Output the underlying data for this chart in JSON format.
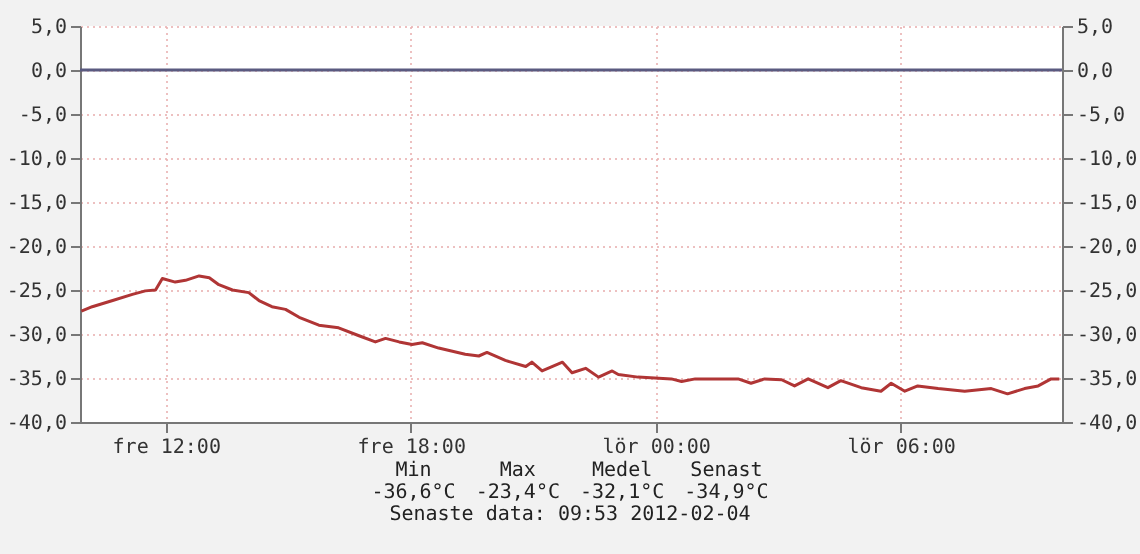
{
  "chart_data": {
    "type": "line",
    "x": [
      "2012-02-03T09:56",
      "2012-02-03T10:12",
      "2012-02-03T10:42",
      "2012-02-03T11:11",
      "2012-02-03T11:30",
      "2012-02-03T11:45",
      "2012-02-03T11:55",
      "2012-02-03T12:14",
      "2012-02-03T12:29",
      "2012-02-03T12:49",
      "2012-02-03T13:04",
      "2012-02-03T13:18",
      "2012-02-03T13:38",
      "2012-02-03T14:02",
      "2012-02-03T14:17",
      "2012-02-03T14:36",
      "2012-02-03T14:56",
      "2012-02-03T15:16",
      "2012-02-03T15:45",
      "2012-02-03T16:14",
      "2012-02-03T16:44",
      "2012-02-03T17:08",
      "2012-02-03T17:23",
      "2012-02-03T17:43",
      "2012-02-03T18:02",
      "2012-02-03T18:17",
      "2012-02-03T18:41",
      "2012-02-03T19:20",
      "2012-02-03T19:40",
      "2012-02-03T19:52",
      "2012-02-03T20:19",
      "2012-02-03T20:49",
      "2012-02-03T20:58",
      "2012-02-03T21:13",
      "2012-02-03T21:43",
      "2012-02-03T21:57",
      "2012-02-03T22:17",
      "2012-02-03T22:36",
      "2012-02-03T22:56",
      "2012-02-03T23:05",
      "2012-02-03T23:34",
      "2012-02-04T00:23",
      "2012-02-04T00:38",
      "2012-02-04T00:58",
      "2012-02-04T02:01",
      "2012-02-04T02:20",
      "2012-02-04T02:40",
      "2012-02-04T03:05",
      "2012-02-04T03:24",
      "2012-02-04T03:44",
      "2012-02-04T04:13",
      "2012-02-04T04:32",
      "2012-02-04T05:02",
      "2012-02-04T05:31",
      "2012-02-04T05:46",
      "2012-02-04T06:06",
      "2012-02-04T06:25",
      "2012-02-04T06:55",
      "2012-02-04T07:34",
      "2012-02-04T08:13",
      "2012-02-04T08:37",
      "2012-02-04T09:02",
      "2012-02-04T09:22",
      "2012-02-04T09:41",
      "2012-02-04T09:53"
    ],
    "series": [
      {
        "color": "#b03535",
        "values": [
          -27.4,
          -26.9,
          -26.2,
          -25.5,
          -25.1,
          -25.0,
          -23.7,
          -24.1,
          -23.9,
          -23.4,
          -23.6,
          -24.4,
          -25.0,
          -25.3,
          -26.2,
          -26.9,
          -27.2,
          -28.1,
          -29.0,
          -29.3,
          -30.2,
          -30.9,
          -30.5,
          -30.9,
          -31.2,
          -31.0,
          -31.6,
          -32.3,
          -32.5,
          -32.1,
          -33.0,
          -33.7,
          -33.2,
          -34.2,
          -33.2,
          -34.4,
          -33.9,
          -34.9,
          -34.2,
          -34.6,
          -34.9,
          -35.1,
          -35.4,
          -35.1,
          -35.1,
          -35.6,
          -35.1,
          -35.2,
          -35.9,
          -35.1,
          -36.1,
          -35.3,
          -36.1,
          -36.5,
          -35.6,
          -36.5,
          -35.9,
          -36.2,
          -36.5,
          -36.2,
          -36.8,
          -36.2,
          -35.9,
          -35.1,
          -35.1
        ]
      }
    ],
    "xlim": [
      "2012-02-03T09:54",
      "2012-02-04T09:57"
    ],
    "xticks": [
      {
        "value": "2012-02-03T12:00",
        "label": "fre 12:00"
      },
      {
        "value": "2012-02-03T18:00",
        "label": "fre 18:00"
      },
      {
        "value": "2012-02-04T00:00",
        "label": "lör 00:00"
      },
      {
        "value": "2012-02-04T06:00",
        "label": "lör 06:00"
      }
    ],
    "ylim": [
      -40,
      5
    ],
    "yticks": [
      {
        "value": -40,
        "label": "-40,0"
      },
      {
        "value": -35,
        "label": "-35,0"
      },
      {
        "value": -30,
        "label": "-30,0"
      },
      {
        "value": -25,
        "label": "-25,0"
      },
      {
        "value": -20,
        "label": "-20,0"
      },
      {
        "value": -15,
        "label": "-15,0"
      },
      {
        "value": -10,
        "label": "-10,0"
      },
      {
        "value": -5,
        "label": "-5,0"
      },
      {
        "value": 0,
        "label": "0,0"
      },
      {
        "value": 5,
        "label": "5,0"
      }
    ],
    "y2lim": [
      -40,
      5
    ],
    "y2ticks": [
      {
        "value": -40,
        "label": "-40,0"
      },
      {
        "value": -35,
        "label": "-35,0"
      },
      {
        "value": -30,
        "label": "-30,0"
      },
      {
        "value": -25,
        "label": "-25,0"
      },
      {
        "value": -20,
        "label": "-20,0"
      },
      {
        "value": -15,
        "label": "-15,0"
      },
      {
        "value": -10,
        "label": "-10,0"
      },
      {
        "value": -5,
        "label": "-5,0"
      },
      {
        "value": 0,
        "label": "0,0"
      },
      {
        "value": 5,
        "label": "5,0"
      }
    ],
    "ref_lines": [
      {
        "axis": "y",
        "value": 0,
        "color": "#5a5a80"
      }
    ],
    "grid": true,
    "marker": "none",
    "line_style": "solid",
    "annotations": [
      "Min",
      "Max",
      "Medel",
      "Senast",
      "-36,6°C",
      "-23,4°C",
      "-32,1°C",
      "-34,9°C",
      "Senaste data: 09:53 2012-02-04"
    ]
  }
}
